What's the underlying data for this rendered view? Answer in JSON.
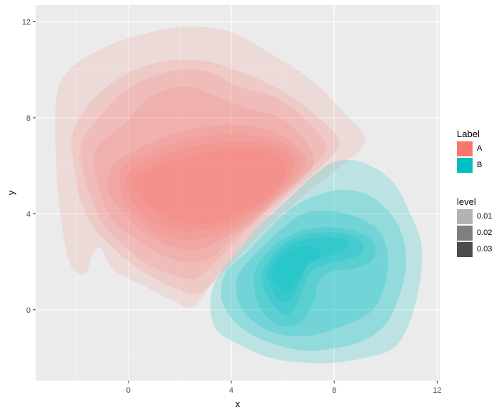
{
  "chart_data": {
    "type": "density2d-filled",
    "title": "",
    "xlabel": "x",
    "ylabel": "y",
    "xlim": [
      -3.6,
      12.1
    ],
    "ylim": [
      -2.95,
      12.7
    ],
    "x_ticks": [
      0,
      4,
      8,
      12
    ],
    "y_ticks": [
      0,
      4,
      8,
      12
    ],
    "x_minor": [
      -2,
      2,
      6,
      10
    ],
    "y_minor": [
      -2,
      2,
      6,
      10
    ],
    "grid": true,
    "legend_position": "right",
    "legends": [
      {
        "title": "Label",
        "entries": [
          {
            "label": "A",
            "color": "#F8766D"
          },
          {
            "label": "B",
            "color": "#00BFC4"
          }
        ]
      },
      {
        "title": "level",
        "entries": [
          {
            "label": "0.01",
            "color": "#B3B3B3"
          },
          {
            "label": "0.02",
            "color": "#7F7F7F"
          },
          {
            "label": "0.03",
            "color": "#4D4D4D"
          }
        ]
      }
    ],
    "series": [
      {
        "name": "A",
        "color": "#F8766D",
        "layer_opacity": 0.14,
        "contours": [
          [
            [
              -2.8,
              8.8
            ],
            [
              -2.3,
              10
            ],
            [
              -1,
              10.9
            ],
            [
              0.6,
              11.5
            ],
            [
              2.2,
              11.8
            ],
            [
              3.9,
              11.6
            ],
            [
              5.5,
              10.7
            ],
            [
              7.2,
              9.5
            ],
            [
              8.3,
              8.3
            ],
            [
              9.2,
              7.1
            ],
            [
              8.4,
              6.1
            ],
            [
              7.3,
              5.2
            ],
            [
              6.2,
              4.2
            ],
            [
              5.1,
              3.1
            ],
            [
              4,
              1.9
            ],
            [
              3.2,
              1
            ],
            [
              2.5,
              0.1
            ],
            [
              1.7,
              0.4
            ],
            [
              0.6,
              1
            ],
            [
              -0.5,
              1.6
            ],
            [
              -0.9,
              2.2
            ],
            [
              -1.1,
              2.6
            ],
            [
              -1.4,
              2.3
            ],
            [
              -1.6,
              1.6
            ],
            [
              -1.9,
              1.5
            ],
            [
              -2.3,
              2
            ],
            [
              -2.6,
              3.6
            ],
            [
              -2.8,
              6
            ]
          ],
          [
            [
              -2.2,
              7.2
            ],
            [
              -1.6,
              8.5
            ],
            [
              -0.3,
              9.7
            ],
            [
              1.1,
              10.3
            ],
            [
              2.8,
              10.4
            ],
            [
              4.4,
              9.9
            ],
            [
              6,
              9.1
            ],
            [
              7.4,
              8
            ],
            [
              8.2,
              7
            ],
            [
              7.7,
              6.2
            ],
            [
              6.7,
              5.2
            ],
            [
              5.7,
              4.2
            ],
            [
              4.8,
              3.1
            ],
            [
              3.8,
              1.9
            ],
            [
              2.8,
              0.7
            ],
            [
              1.8,
              0.9
            ],
            [
              0.7,
              1.5
            ],
            [
              -0.2,
              2.2
            ],
            [
              -0.8,
              2.8
            ],
            [
              -1.4,
              3.5
            ],
            [
              -1.9,
              4.7
            ],
            [
              -2.1,
              6
            ]
          ],
          [
            [
              -1.8,
              7
            ],
            [
              -1,
              8.2
            ],
            [
              0.1,
              9.3
            ],
            [
              1.5,
              9.9
            ],
            [
              2.9,
              10
            ],
            [
              4.3,
              9.3
            ],
            [
              5.8,
              8.8
            ],
            [
              7,
              7.8
            ],
            [
              7.7,
              6.8
            ],
            [
              7.2,
              6
            ],
            [
              6.3,
              5.1
            ],
            [
              5.4,
              4.2
            ],
            [
              4.5,
              3.2
            ],
            [
              3.6,
              2.2
            ],
            [
              2.6,
              1.3
            ],
            [
              1.6,
              1.5
            ],
            [
              0.6,
              2
            ],
            [
              -0.3,
              2.8
            ],
            [
              -1,
              3.6
            ],
            [
              -1.5,
              4.8
            ],
            [
              -1.8,
              6
            ]
          ],
          [
            [
              -1.2,
              6.8
            ],
            [
              -0.2,
              7.7
            ],
            [
              0.9,
              8.9
            ],
            [
              2.2,
              9.3
            ],
            [
              3.4,
              8.9
            ],
            [
              4.6,
              8.4
            ],
            [
              5.9,
              8
            ],
            [
              6.9,
              7
            ],
            [
              7.2,
              6.1
            ],
            [
              6.7,
              5.4
            ],
            [
              5.9,
              4.6
            ],
            [
              5,
              3.8
            ],
            [
              4,
              2.9
            ],
            [
              3.1,
              2.1
            ],
            [
              2.1,
              2
            ],
            [
              1.1,
              2.4
            ],
            [
              0.2,
              3
            ],
            [
              -0.6,
              3.7
            ],
            [
              -1,
              4.6
            ],
            [
              -1.3,
              5.8
            ]
          ],
          [
            [
              -0.6,
              6
            ],
            [
              0.2,
              6.6
            ],
            [
              1.2,
              7.1
            ],
            [
              2.4,
              7.5
            ],
            [
              3.7,
              7.7
            ],
            [
              5,
              7.6
            ],
            [
              6.2,
              7.1
            ],
            [
              6.9,
              6.3
            ],
            [
              6.6,
              5.5
            ],
            [
              5.9,
              4.8
            ],
            [
              5.1,
              4
            ],
            [
              4.2,
              3.3
            ],
            [
              3.2,
              2.7
            ],
            [
              2.3,
              2.5
            ],
            [
              1.3,
              2.8
            ],
            [
              0.4,
              3.4
            ],
            [
              -0.3,
              4.2
            ],
            [
              -0.8,
              5
            ]
          ],
          [
            [
              -0.3,
              5.8
            ],
            [
              0.5,
              6.4
            ],
            [
              1.5,
              6.8
            ],
            [
              2.7,
              7.2
            ],
            [
              4,
              7.3
            ],
            [
              5.2,
              7.2
            ],
            [
              6.3,
              6.8
            ],
            [
              6.7,
              6.1
            ],
            [
              6.3,
              5.4
            ],
            [
              5.6,
              4.6
            ],
            [
              4.8,
              3.9
            ],
            [
              3.9,
              3.3
            ],
            [
              3,
              3
            ],
            [
              2.1,
              2.9
            ],
            [
              1.2,
              3.2
            ],
            [
              0.4,
              3.8
            ],
            [
              -0.2,
              4.6
            ]
          ],
          [
            [
              0,
              5.7
            ],
            [
              0.8,
              6.2
            ],
            [
              1.8,
              6.6
            ],
            [
              3,
              6.9
            ],
            [
              4.2,
              7
            ],
            [
              5.3,
              6.9
            ],
            [
              6.2,
              6.5
            ],
            [
              6.4,
              5.9
            ],
            [
              6,
              5.2
            ],
            [
              5.3,
              4.5
            ],
            [
              4.5,
              3.9
            ],
            [
              3.7,
              3.5
            ],
            [
              2.8,
              3.3
            ],
            [
              1.9,
              3.3
            ],
            [
              1.1,
              3.6
            ],
            [
              0.4,
              4.2
            ],
            [
              0,
              4.9
            ]
          ],
          [
            [
              0.3,
              5.5
            ],
            [
              1.1,
              6
            ],
            [
              2.1,
              6.3
            ],
            [
              3.2,
              6.6
            ],
            [
              4.3,
              6.7
            ],
            [
              5.3,
              6.6
            ],
            [
              6,
              6.2
            ],
            [
              6.1,
              5.6
            ],
            [
              5.6,
              4.9
            ],
            [
              4.9,
              4.3
            ],
            [
              4.1,
              3.9
            ],
            [
              3.3,
              3.6
            ],
            [
              2.4,
              3.6
            ],
            [
              1.6,
              3.8
            ],
            [
              0.9,
              4.3
            ],
            [
              0.4,
              4.9
            ]
          ]
        ]
      },
      {
        "name": "B",
        "color": "#00BFC4",
        "layer_opacity": 0.2,
        "contours": [
          [
            [
              3.6,
              1.6
            ],
            [
              4.3,
              2.5
            ],
            [
              5.2,
              3.6
            ],
            [
              6.2,
              4.6
            ],
            [
              7.2,
              5.6
            ],
            [
              8.1,
              6.2
            ],
            [
              9.2,
              6.1
            ],
            [
              10.3,
              5.3
            ],
            [
              11,
              3.9
            ],
            [
              11.4,
              2.6
            ],
            [
              11.3,
              1
            ],
            [
              10.9,
              -0.6
            ],
            [
              10.3,
              -1.6
            ],
            [
              9.2,
              -2
            ],
            [
              8,
              -2.2
            ],
            [
              6.8,
              -2.2
            ],
            [
              5.5,
              -2
            ],
            [
              4.4,
              -1.5
            ],
            [
              3.4,
              -0.8
            ],
            [
              3.2,
              0.5
            ]
          ],
          [
            [
              3.8,
              1.6
            ],
            [
              4.6,
              2.4
            ],
            [
              5.4,
              3.3
            ],
            [
              6.3,
              4.2
            ],
            [
              7.4,
              4.8
            ],
            [
              8.5,
              5
            ],
            [
              9.6,
              4.6
            ],
            [
              10.5,
              3.5
            ],
            [
              10.8,
              2
            ],
            [
              10.5,
              0.5
            ],
            [
              10,
              -0.6
            ],
            [
              9.1,
              -1.3
            ],
            [
              8,
              -1.6
            ],
            [
              6.8,
              -1.7
            ],
            [
              5.6,
              -1.4
            ],
            [
              4.6,
              -0.9
            ],
            [
              3.9,
              -0.2
            ],
            [
              3.6,
              0.6
            ]
          ],
          [
            [
              4.3,
              1.5
            ],
            [
              5,
              2.4
            ],
            [
              5.8,
              3.2
            ],
            [
              6.8,
              4
            ],
            [
              7.9,
              4.1
            ],
            [
              9,
              3.8
            ],
            [
              9.8,
              3.2
            ],
            [
              10.1,
              2.1
            ],
            [
              9.9,
              0.8
            ],
            [
              9.4,
              -0.1
            ],
            [
              8.5,
              -0.6
            ],
            [
              7.4,
              -1
            ],
            [
              6.3,
              -1.1
            ],
            [
              5.3,
              -0.8
            ],
            [
              4.5,
              -0.1
            ],
            [
              4.2,
              0.7
            ]
          ],
          [
            [
              4.9,
              1.5
            ],
            [
              5.4,
              2.4
            ],
            [
              6.1,
              3
            ],
            [
              7.1,
              3.4
            ],
            [
              8.3,
              3.4
            ],
            [
              9.2,
              3.1
            ],
            [
              9.6,
              2.6
            ],
            [
              9.4,
              2
            ],
            [
              8.7,
              1.7
            ],
            [
              7.9,
              1.6
            ],
            [
              7.4,
              1.2
            ],
            [
              7.2,
              0.4
            ],
            [
              6.8,
              -0.4
            ],
            [
              6.2,
              -0.7
            ],
            [
              5.5,
              -0.4
            ],
            [
              5,
              0.4
            ]
          ],
          [
            [
              5.2,
              1.5
            ],
            [
              5.7,
              2.4
            ],
            [
              6.3,
              2.9
            ],
            [
              7.2,
              3.2
            ],
            [
              8.3,
              3.2
            ],
            [
              9,
              2.9
            ],
            [
              9.1,
              2.4
            ],
            [
              8.5,
              2.1
            ],
            [
              7.7,
              1.9
            ],
            [
              7.1,
              1.6
            ],
            [
              6.8,
              0.9
            ],
            [
              6.5,
              0.1
            ],
            [
              6.1,
              -0.2
            ],
            [
              5.6,
              0.2
            ],
            [
              5.3,
              0.8
            ]
          ],
          [
            [
              5.4,
              1.6
            ],
            [
              5.9,
              2.4
            ],
            [
              6.5,
              2.8
            ],
            [
              7.3,
              3
            ],
            [
              8.1,
              3
            ],
            [
              8.6,
              2.8
            ],
            [
              8.3,
              2.4
            ],
            [
              7.6,
              2.2
            ],
            [
              7,
              1.9
            ],
            [
              6.7,
              1.3
            ],
            [
              6.4,
              0.6
            ],
            [
              6.1,
              0.3
            ],
            [
              5.7,
              0.6
            ],
            [
              5.5,
              1.1
            ]
          ],
          [
            [
              5.6,
              1.7
            ],
            [
              6,
              2.3
            ],
            [
              6.6,
              2.6
            ],
            [
              7.2,
              2.6
            ],
            [
              7.5,
              2.3
            ],
            [
              7,
              1.9
            ],
            [
              6.6,
              1.3
            ],
            [
              6.3,
              0.8
            ],
            [
              6,
              0.8
            ],
            [
              5.7,
              1.2
            ]
          ]
        ]
      }
    ]
  }
}
